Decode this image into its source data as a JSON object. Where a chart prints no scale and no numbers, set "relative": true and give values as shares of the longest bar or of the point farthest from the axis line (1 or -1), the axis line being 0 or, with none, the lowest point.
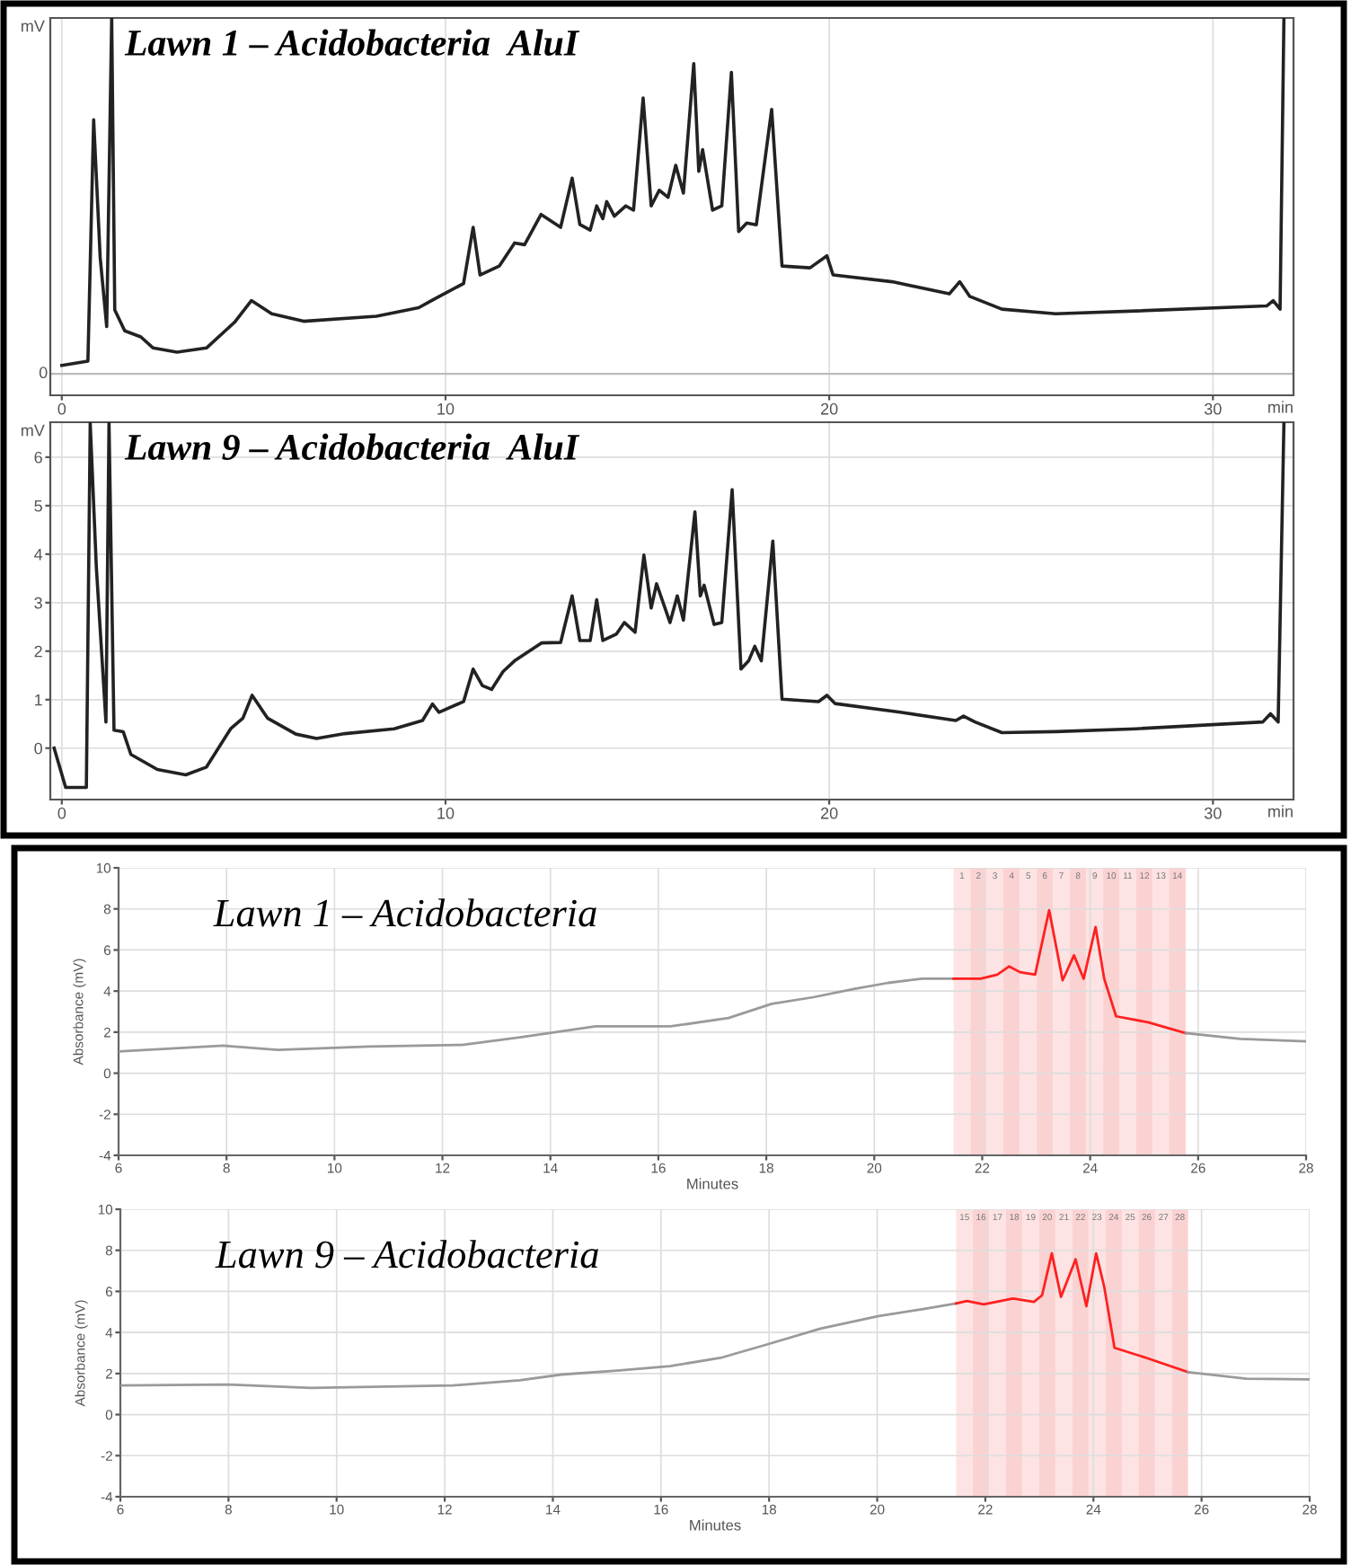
{
  "chart_data": [
    {
      "type": "line",
      "title": "Lawn 1 – Acidobacteria  AluI",
      "xlabel": "min",
      "ylabel": "mV",
      "relative": true,
      "xlim": [
        -0.3,
        32.1
      ],
      "xticks": [
        0,
        10,
        20,
        30
      ],
      "grid": "x",
      "legend": false,
      "ref_lines": [
        {
          "axis": "y",
          "value": 0,
          "label": "0",
          "color": "#bbbbbb"
        }
      ],
      "series": [
        {
          "color": "#222222",
          "x": [
            0,
            0.68,
            0.83,
            1.0,
            1.17,
            1.3,
            1.38,
            1.64,
            2.06,
            2.38,
            3.0,
            3.77,
            4.5,
            4.94,
            5.47,
            6.3,
            8.2,
            9.3,
            9.72,
            10.47,
            10.72,
            10.9,
            11.4,
            11.8,
            12.06,
            12.49,
            13.0,
            13.3,
            13.5,
            13.77,
            13.94,
            14.1,
            14.2,
            14.4,
            14.7,
            14.9,
            15.15,
            15.36,
            15.57,
            15.8,
            16.0,
            16.2,
            16.47,
            16.6,
            16.7,
            16.96,
            17.2,
            17.45,
            17.64,
            17.85,
            18.1,
            18.5,
            18.77,
            19.5,
            19.94,
            20.1,
            21.64,
            23.13,
            23.4,
            23.66,
            24.5,
            25.9,
            28.0,
            31.4,
            31.57,
            31.75,
            31.85
          ],
          "values": [
            0.024,
            0.036,
            0.714,
            0.327,
            0.133,
            1.0,
            0.18,
            0.121,
            0.104,
            0.073,
            0.061,
            0.073,
            0.145,
            0.206,
            0.169,
            0.148,
            0.162,
            0.186,
            0.211,
            0.254,
            0.412,
            0.278,
            0.303,
            0.368,
            0.363,
            0.448,
            0.412,
            0.55,
            0.42,
            0.404,
            0.472,
            0.436,
            0.484,
            0.443,
            0.472,
            0.46,
            0.775,
            0.472,
            0.516,
            0.496,
            0.586,
            0.508,
            0.872,
            0.569,
            0.63,
            0.46,
            0.472,
            0.847,
            0.4,
            0.424,
            0.419,
            0.743,
            0.303,
            0.298,
            0.332,
            0.278,
            0.259,
            0.225,
            0.259,
            0.218,
            0.182,
            0.169,
            0.177,
            0.191,
            0.206,
            0.182,
            1.0
          ]
        }
      ]
    },
    {
      "type": "line",
      "title": "Lawn 9 – Acidobacteria  AluI",
      "xlabel": "min",
      "ylabel": "mV",
      "xlim": [
        -0.3,
        32.1
      ],
      "xticks": [
        0,
        10,
        20,
        30
      ],
      "ylim": [
        -1.06,
        6.72
      ],
      "yticks": [
        0,
        1,
        2,
        3,
        4,
        5,
        6
      ],
      "grid": true,
      "legend": false,
      "series": [
        {
          "color": "#222222",
          "x": [
            -0.2,
            0.1,
            0.64,
            0.74,
            0.9,
            1.15,
            1.23,
            1.36,
            1.6,
            1.8,
            2.49,
            3.23,
            3.77,
            4.4,
            4.72,
            4.96,
            5.36,
            6.1,
            6.64,
            7.38,
            8.66,
            9.4,
            9.66,
            9.83,
            10.47,
            10.72,
            10.96,
            11.2,
            11.5,
            11.8,
            12.5,
            13.0,
            13.3,
            13.5,
            13.77,
            13.94,
            14.1,
            14.45,
            14.66,
            14.94,
            15.17,
            15.36,
            15.5,
            15.85,
            16.04,
            16.2,
            16.5,
            16.64,
            16.74,
            17.0,
            17.2,
            17.47,
            17.7,
            17.9,
            18.06,
            18.23,
            18.53,
            18.77,
            19.72,
            19.94,
            20.15,
            21.85,
            23.3,
            23.5,
            23.8,
            24.5,
            25.9,
            28.0,
            31.3,
            31.5,
            31.7,
            31.85
          ],
          "values": [
            0.0,
            -0.81,
            -0.81,
            6.7,
            3.73,
            0.54,
            6.7,
            0.37,
            0.34,
            -0.13,
            -0.44,
            -0.55,
            -0.39,
            0.4,
            0.62,
            1.09,
            0.62,
            0.29,
            0.2,
            0.3,
            0.4,
            0.57,
            0.91,
            0.74,
            0.96,
            1.63,
            1.29,
            1.21,
            1.58,
            1.8,
            2.17,
            2.18,
            3.14,
            2.22,
            2.22,
            3.06,
            2.22,
            2.35,
            2.59,
            2.39,
            3.98,
            2.89,
            3.39,
            2.59,
            3.14,
            2.64,
            4.87,
            3.14,
            3.36,
            2.55,
            2.59,
            5.33,
            1.63,
            1.8,
            2.1,
            1.8,
            4.27,
            1.01,
            0.96,
            1.09,
            0.92,
            0.74,
            0.57,
            0.66,
            0.54,
            0.32,
            0.34,
            0.4,
            0.54,
            0.71,
            0.54,
            6.7
          ]
        }
      ]
    },
    {
      "type": "line",
      "title": "Lawn 1 – Acidobacteria",
      "xlabel": "Minutes",
      "ylabel": "Absorbance (mV)",
      "xlim": [
        6,
        28
      ],
      "xticks": [
        6,
        8,
        10,
        12,
        14,
        16,
        18,
        20,
        22,
        24,
        26,
        28
      ],
      "ylim": [
        -4,
        10
      ],
      "yticks": [
        -4,
        -2,
        0,
        2,
        4,
        6,
        8,
        10
      ],
      "grid": true,
      "legend": false,
      "bands": [
        {
          "axis": "x",
          "from": 21.47,
          "to": 21.78,
          "label": "1",
          "color": "#fde3e3"
        },
        {
          "axis": "x",
          "from": 21.78,
          "to": 22.08,
          "label": "2",
          "color": "#fbd2d2"
        },
        {
          "axis": "x",
          "from": 22.08,
          "to": 22.39,
          "label": "3",
          "color": "#fde3e3"
        },
        {
          "axis": "x",
          "from": 22.39,
          "to": 22.7,
          "label": "4",
          "color": "#fbd2d2"
        },
        {
          "axis": "x",
          "from": 22.7,
          "to": 23.01,
          "label": "5",
          "color": "#fde3e3"
        },
        {
          "axis": "x",
          "from": 23.01,
          "to": 23.31,
          "label": "6",
          "color": "#fbd2d2"
        },
        {
          "axis": "x",
          "from": 23.31,
          "to": 23.62,
          "label": "7",
          "color": "#fde3e3"
        },
        {
          "axis": "x",
          "from": 23.62,
          "to": 23.93,
          "label": "8",
          "color": "#fbd2d2"
        },
        {
          "axis": "x",
          "from": 23.93,
          "to": 24.24,
          "label": "9",
          "color": "#fde3e3"
        },
        {
          "axis": "x",
          "from": 24.24,
          "to": 24.54,
          "label": "10",
          "color": "#fbd2d2"
        },
        {
          "axis": "x",
          "from": 24.54,
          "to": 24.85,
          "label": "11",
          "color": "#fde3e3"
        },
        {
          "axis": "x",
          "from": 24.85,
          "to": 25.16,
          "label": "12",
          "color": "#fbd2d2"
        },
        {
          "axis": "x",
          "from": 25.16,
          "to": 25.46,
          "label": "13",
          "color": "#fde3e3"
        },
        {
          "axis": "x",
          "from": 25.46,
          "to": 25.77,
          "label": "14",
          "color": "#fbd2d2"
        }
      ],
      "series": [
        {
          "color": "#9a9a9a",
          "x": [
            6,
            7.94,
            8.95,
            10.65,
            12.36,
            13.44,
            14.84,
            16.23,
            17.3,
            18.1,
            18.87,
            19.64,
            20.26,
            20.88,
            21.47
          ],
          "values": [
            1.06,
            1.34,
            1.14,
            1.3,
            1.38,
            1.75,
            2.28,
            2.28,
            2.69,
            3.38,
            3.7,
            4.11,
            4.4,
            4.6,
            4.6
          ]
        },
        {
          "color": "#ff2020",
          "x": [
            21.47,
            21.97,
            22.28,
            22.5,
            22.7,
            22.98,
            23.24,
            23.49,
            23.7,
            23.88,
            24.1,
            24.26,
            24.48,
            25.07,
            25.77
          ],
          "values": [
            4.6,
            4.6,
            4.8,
            5.2,
            4.92,
            4.8,
            7.94,
            4.52,
            5.74,
            4.6,
            7.12,
            4.6,
            2.77,
            2.48,
            1.95
          ]
        },
        {
          "color": "#9a9a9a",
          "x": [
            25.77,
            26.78,
            28.0
          ],
          "values": [
            1.95,
            1.67,
            1.55
          ]
        }
      ]
    },
    {
      "type": "line",
      "title": "Lawn 9 – Acidobacteria",
      "xlabel": "Minutes",
      "ylabel": "Absorbance (mV)",
      "xlim": [
        6,
        28
      ],
      "xticks": [
        6,
        8,
        10,
        12,
        14,
        16,
        18,
        20,
        22,
        24,
        26,
        28
      ],
      "ylim": [
        -4,
        10
      ],
      "yticks": [
        -4,
        -2,
        0,
        2,
        4,
        6,
        8,
        10
      ],
      "grid": true,
      "legend": false,
      "bands": [
        {
          "axis": "x",
          "from": 21.46,
          "to": 21.77,
          "label": "15",
          "color": "#fde3e3"
        },
        {
          "axis": "x",
          "from": 21.77,
          "to": 22.07,
          "label": "16",
          "color": "#fbd2d2"
        },
        {
          "axis": "x",
          "from": 22.07,
          "to": 22.38,
          "label": "17",
          "color": "#fde3e3"
        },
        {
          "axis": "x",
          "from": 22.38,
          "to": 22.69,
          "label": "18",
          "color": "#fbd2d2"
        },
        {
          "axis": "x",
          "from": 22.69,
          "to": 22.99,
          "label": "19",
          "color": "#fde3e3"
        },
        {
          "axis": "x",
          "from": 22.99,
          "to": 23.3,
          "label": "20",
          "color": "#fbd2d2"
        },
        {
          "axis": "x",
          "from": 23.3,
          "to": 23.61,
          "label": "21",
          "color": "#fde3e3"
        },
        {
          "axis": "x",
          "from": 23.61,
          "to": 23.91,
          "label": "22",
          "color": "#fbd2d2"
        },
        {
          "axis": "x",
          "from": 23.91,
          "to": 24.22,
          "label": "23",
          "color": "#fde3e3"
        },
        {
          "axis": "x",
          "from": 24.22,
          "to": 24.53,
          "label": "24",
          "color": "#fbd2d2"
        },
        {
          "axis": "x",
          "from": 24.53,
          "to": 24.83,
          "label": "25",
          "color": "#fde3e3"
        },
        {
          "axis": "x",
          "from": 24.83,
          "to": 25.14,
          "label": "26",
          "color": "#fbd2d2"
        },
        {
          "axis": "x",
          "from": 25.14,
          "to": 25.45,
          "label": "27",
          "color": "#fde3e3"
        },
        {
          "axis": "x",
          "from": 25.45,
          "to": 25.75,
          "label": "28",
          "color": "#fbd2d2"
        }
      ],
      "series": [
        {
          "color": "#9a9a9a",
          "x": [
            6,
            7.98,
            9.52,
            12.15,
            13.39,
            14.16,
            15.24,
            16.17,
            17.1,
            18.02,
            18.95,
            20.03,
            20.8,
            21.46
          ],
          "values": [
            1.42,
            1.46,
            1.3,
            1.42,
            1.67,
            1.95,
            2.15,
            2.36,
            2.76,
            3.46,
            4.19,
            4.8,
            5.12,
            5.41
          ]
        },
        {
          "color": "#ff2020",
          "x": [
            21.46,
            21.66,
            21.97,
            22.2,
            22.51,
            22.9,
            23.05,
            23.23,
            23.4,
            23.67,
            23.87,
            24.05,
            24.2,
            24.39,
            24.98,
            25.75
          ],
          "values": [
            5.41,
            5.53,
            5.37,
            5.49,
            5.65,
            5.49,
            5.81,
            7.85,
            5.73,
            7.56,
            5.28,
            7.85,
            6.22,
            3.25,
            2.76,
            2.07
          ]
        },
        {
          "color": "#9a9a9a",
          "x": [
            25.75,
            26.83,
            28.0
          ],
          "values": [
            2.07,
            1.75,
            1.71
          ]
        }
      ]
    }
  ]
}
